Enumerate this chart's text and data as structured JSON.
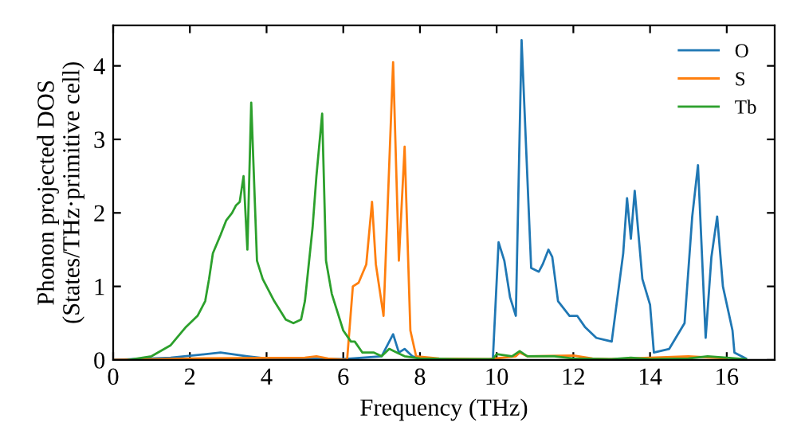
{
  "chart_data": {
    "type": "line",
    "xlabel": "Frequency (THz)",
    "ylabel": "Phonon projected DOS\n(States/THz·primitive cell)",
    "xlim": [
      0,
      17.25
    ],
    "ylim": [
      0,
      4.55
    ],
    "xticks": [
      0,
      2,
      4,
      6,
      8,
      10,
      12,
      14,
      16
    ],
    "yticks": [
      0,
      1,
      2,
      3,
      4
    ],
    "grid": false,
    "legend": "top right",
    "line_style": "solid",
    "marker": "none",
    "series": [
      {
        "name": "O",
        "color": "#1f77b4",
        "x": [
          0,
          1.5,
          2.8,
          3.5,
          4,
          6,
          7,
          7.3,
          7.45,
          7.6,
          7.8,
          8,
          9.9,
          10.05,
          10.2,
          10.35,
          10.5,
          10.65,
          10.9,
          11.1,
          11.2,
          11.35,
          11.45,
          11.6,
          11.9,
          12.1,
          12.3,
          12.6,
          13.0,
          13.3,
          13.4,
          13.5,
          13.6,
          13.8,
          14,
          14.1,
          14.5,
          14.9,
          15.1,
          15.25,
          15.45,
          15.6,
          15.75,
          15.9,
          16.15,
          16.2,
          16.5
        ],
        "values": [
          0,
          0.03,
          0.1,
          0.05,
          0.02,
          0.01,
          0.05,
          0.35,
          0.1,
          0.15,
          0.05,
          0.02,
          0.0,
          1.6,
          1.35,
          0.85,
          0.6,
          4.35,
          1.25,
          1.2,
          1.3,
          1.5,
          1.4,
          0.8,
          0.6,
          0.6,
          0.45,
          0.3,
          0.25,
          1.45,
          2.2,
          1.65,
          2.3,
          1.1,
          0.75,
          0.1,
          0.15,
          0.5,
          1.95,
          2.65,
          0.3,
          1.4,
          1.95,
          1.0,
          0.4,
          0.1,
          0.02
        ]
      },
      {
        "name": "S",
        "color": "#ff7f0e",
        "x": [
          0,
          2,
          5,
          5.3,
          5.6,
          6.1,
          6.25,
          6.4,
          6.6,
          6.75,
          6.85,
          7.05,
          7.3,
          7.45,
          7.6,
          7.75,
          7.9,
          8.5,
          9.8,
          10.5,
          10.6,
          10.8,
          12,
          12.5,
          13,
          15,
          16
        ],
        "values": [
          0.0,
          0.02,
          0.03,
          0.05,
          0.02,
          0.0,
          1.0,
          1.05,
          1.3,
          2.15,
          1.3,
          0.6,
          4.05,
          1.35,
          2.9,
          0.4,
          0.05,
          0.02,
          0.01,
          0.05,
          0.1,
          0.05,
          0.06,
          0.02,
          0.01,
          0.05,
          0.02
        ]
      },
      {
        "name": "Tb",
        "color": "#2ca02c",
        "x": [
          0.4,
          1,
          1.5,
          1.9,
          2.2,
          2.4,
          2.5,
          2.6,
          2.8,
          2.95,
          3.1,
          3.2,
          3.3,
          3.4,
          3.5,
          3.6,
          3.75,
          3.9,
          4.2,
          4.5,
          4.7,
          4.9,
          5.0,
          5.2,
          5.3,
          5.45,
          5.55,
          5.7,
          6.0,
          6.2,
          6.3,
          6.5,
          6.8,
          7.0,
          7.2,
          7.4,
          7.6,
          8.0,
          9.0,
          9.9,
          10.0,
          10.4,
          10.6,
          10.8,
          11.5,
          12,
          13,
          13.5,
          14,
          15,
          15.5,
          16,
          16.5
        ],
        "values": [
          0,
          0.05,
          0.2,
          0.45,
          0.6,
          0.8,
          1.1,
          1.45,
          1.7,
          1.9,
          2.0,
          2.1,
          2.15,
          2.5,
          1.5,
          3.5,
          1.35,
          1.1,
          0.8,
          0.55,
          0.5,
          0.55,
          0.8,
          1.8,
          2.5,
          3.35,
          1.35,
          0.9,
          0.4,
          0.25,
          0.25,
          0.1,
          0.1,
          0.05,
          0.15,
          0.1,
          0.05,
          0.02,
          0.01,
          0.01,
          0.08,
          0.05,
          0.12,
          0.05,
          0.05,
          0.02,
          0.01,
          0.03,
          0.01,
          0.02,
          0.05,
          0.03,
          0.01
        ]
      }
    ]
  }
}
